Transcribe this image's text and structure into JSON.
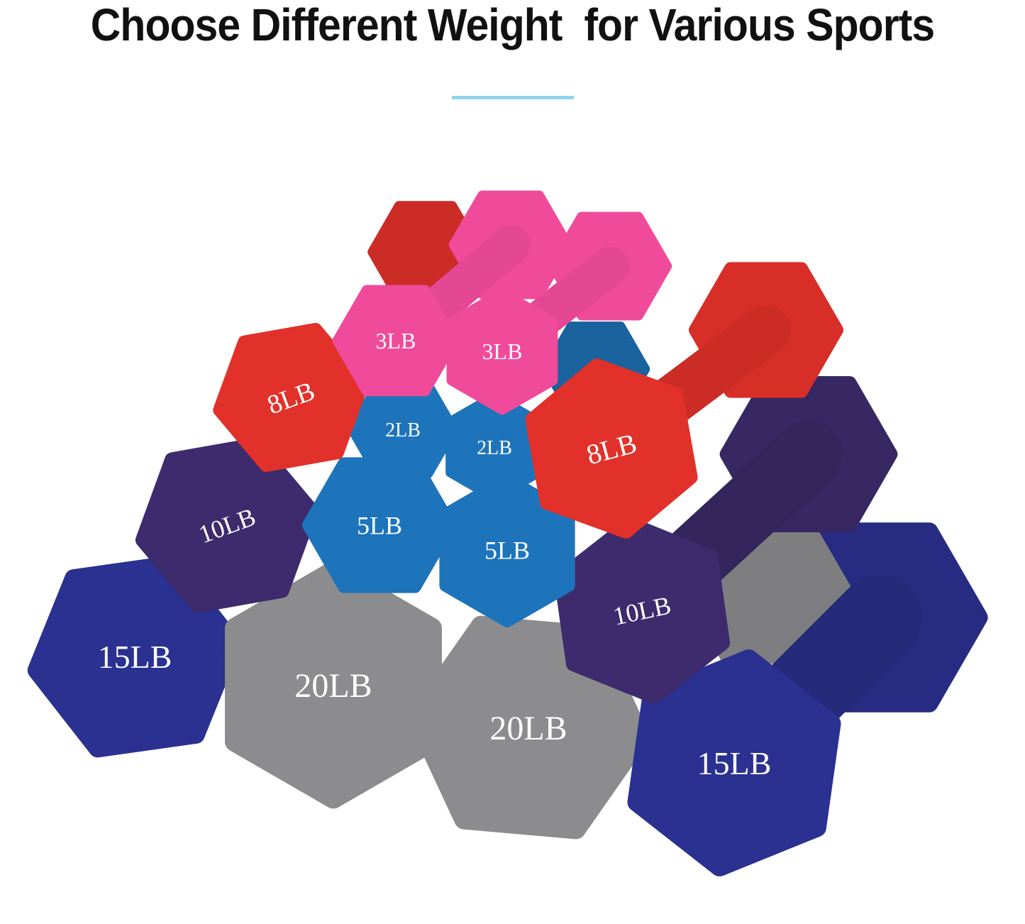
{
  "title": "Choose Different Weight  for Various Sports",
  "accent_color": "#8fd3ef",
  "colors": {
    "navy": "#2b3190",
    "gray": "#8c8c8e",
    "purple": "#3d2b6d",
    "blue": "#1e74ba",
    "red": "#e2312a",
    "pink": "#f04b9b"
  },
  "dumbbells": [
    {
      "label": "15LB",
      "color": "navy"
    },
    {
      "label": "20LB",
      "color": "gray"
    },
    {
      "label": "20LB",
      "color": "gray"
    },
    {
      "label": "15LB",
      "color": "navy"
    },
    {
      "label": "10LB",
      "color": "purple"
    },
    {
      "label": "10LB",
      "color": "purple"
    },
    {
      "label": "5LB",
      "color": "blue"
    },
    {
      "label": "5LB",
      "color": "blue"
    },
    {
      "label": "2LB",
      "color": "blue"
    },
    {
      "label": "2LB",
      "color": "blue"
    },
    {
      "label": "8LB",
      "color": "red"
    },
    {
      "label": "8LB",
      "color": "red"
    },
    {
      "label": "3LB",
      "color": "pink"
    },
    {
      "label": "3LB",
      "color": "pink"
    }
  ]
}
